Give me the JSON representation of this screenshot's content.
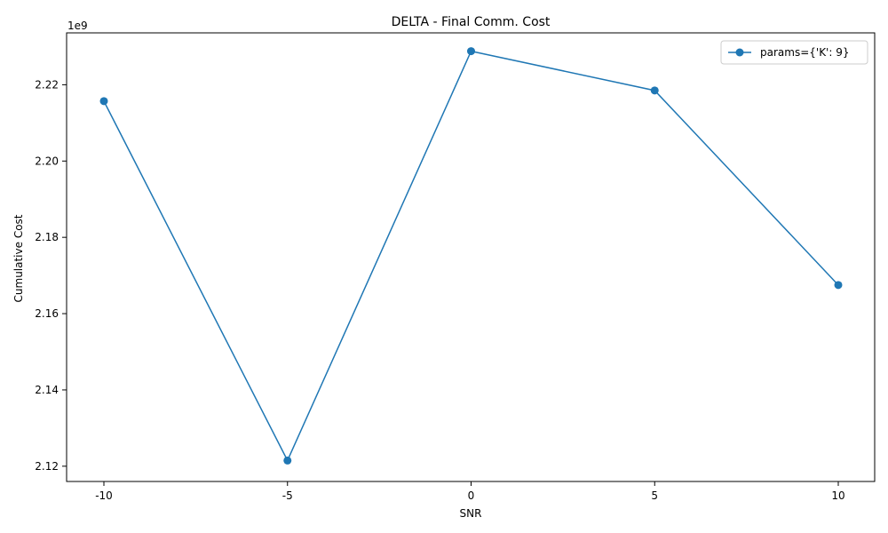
{
  "chart_data": {
    "type": "line",
    "title": "DELTA - Final Comm. Cost",
    "xlabel": "SNR",
    "ylabel": "Cumulative Cost",
    "y_offset_label": "1e9",
    "y_multiplier": 1000000000,
    "categories": [
      "-10",
      "-5",
      "0",
      "5",
      "10"
    ],
    "series": [
      {
        "name": "params={'K': 9}",
        "color": "#1f77b4",
        "marker": "circle",
        "values": [
          2215700000,
          2121500000,
          2228800000,
          2218500000,
          2167500000
        ]
      }
    ],
    "y_ticks": [
      2.12,
      2.14,
      2.16,
      2.18,
      2.2,
      2.22
    ],
    "y_tick_labels": [
      "2.12",
      "2.14",
      "2.16",
      "2.18",
      "2.20",
      "2.22"
    ],
    "ylim": [
      2.116,
      2.2336
    ],
    "grid": false,
    "legend_position": "top-right"
  }
}
